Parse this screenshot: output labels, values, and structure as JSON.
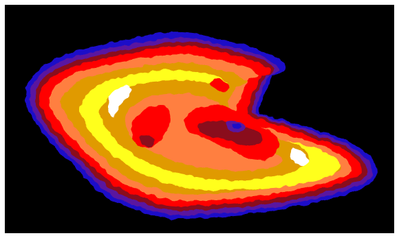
{
  "image": {
    "subject": "false-color-intensity-cloud",
    "background_color": "#000000",
    "border_color": "#ffffff",
    "palette": [
      "#000000",
      "#1a10c8",
      "#5a18a0",
      "#8a0a1a",
      "#ff0000",
      "#ff7f40",
      "#e09a00",
      "#ffff1a",
      "#ffffff"
    ]
  }
}
